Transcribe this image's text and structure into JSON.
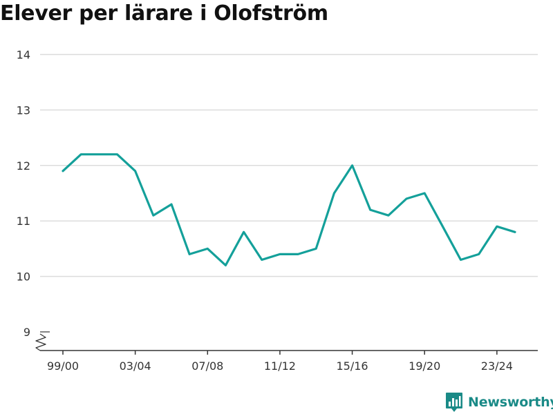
{
  "title": "Elever per lärare i Olofström",
  "brand": {
    "name": "Newsworthy",
    "icon": "bar-chart-pin-icon"
  },
  "colors": {
    "line": "#14a09a",
    "grid": "#dcdcdc",
    "axis": "#333333",
    "brand": "#1a8a87"
  },
  "chart_data": {
    "type": "line",
    "title": "Elever per lärare i Olofström",
    "xlabel": "",
    "ylabel": "",
    "ylim": [
      9,
      14
    ],
    "y_axis_break": true,
    "grid": true,
    "yticks": [
      9,
      10,
      11,
      12,
      13,
      14
    ],
    "xtick_labels": [
      "99/00",
      "03/04",
      "07/08",
      "11/12",
      "15/16",
      "19/20",
      "23/24"
    ],
    "x": [
      "99/00",
      "00/01",
      "01/02",
      "02/03",
      "03/04",
      "04/05",
      "05/06",
      "06/07",
      "07/08",
      "08/09",
      "09/10",
      "10/11",
      "11/12",
      "12/13",
      "13/14",
      "14/15",
      "15/16",
      "16/17",
      "17/18",
      "18/19",
      "19/20",
      "20/21",
      "21/22",
      "22/23",
      "23/24",
      "24/25"
    ],
    "series": [
      {
        "values": [
          11.9,
          12.2,
          12.2,
          12.2,
          11.9,
          11.1,
          11.3,
          10.4,
          10.5,
          10.2,
          10.8,
          10.3,
          10.4,
          10.4,
          10.5,
          11.5,
          12.0,
          11.2,
          11.1,
          11.4,
          11.5,
          10.9,
          10.3,
          10.4,
          10.9,
          10.8
        ]
      }
    ]
  }
}
